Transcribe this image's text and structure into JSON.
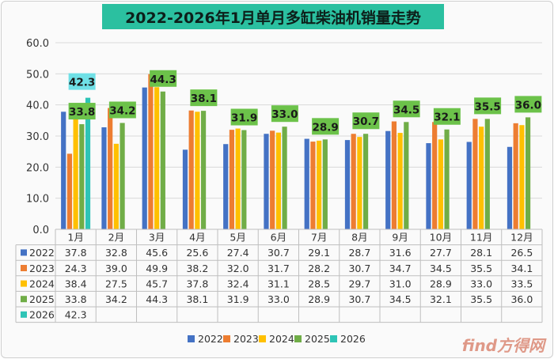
{
  "chart_data": {
    "type": "bar",
    "title": "2022-2026年1月单月多缸柴油机销量走势",
    "categories": [
      "1月",
      "2月",
      "3月",
      "4月",
      "5月",
      "6月",
      "7月",
      "8月",
      "9月",
      "10月",
      "11月",
      "12月"
    ],
    "ylim": [
      0,
      60
    ],
    "yticks": [
      "0.0",
      "10.0",
      "20.0",
      "30.0",
      "40.0",
      "50.0",
      "60.0"
    ],
    "grid": true,
    "legend_position": "bottom",
    "series": [
      {
        "name": "2022",
        "color": "#4472c4",
        "values": [
          37.8,
          32.8,
          45.6,
          25.6,
          27.4,
          30.7,
          29.1,
          28.7,
          31.6,
          27.7,
          28.1,
          26.5
        ]
      },
      {
        "name": "2023",
        "color": "#ed7d31",
        "values": [
          24.3,
          39.0,
          49.9,
          38.2,
          32.0,
          31.7,
          28.2,
          30.7,
          34.7,
          34.5,
          35.5,
          34.1
        ]
      },
      {
        "name": "2024",
        "color": "#ffc000",
        "values": [
          38.4,
          27.5,
          45.7,
          37.8,
          32.4,
          31.1,
          28.5,
          29.7,
          31.0,
          28.9,
          33.0,
          33.5
        ]
      },
      {
        "name": "2025",
        "color": "#70ad47",
        "values": [
          33.8,
          34.2,
          44.3,
          38.1,
          31.9,
          33.0,
          28.9,
          30.7,
          34.5,
          32.1,
          35.5,
          36.0
        ]
      },
      {
        "name": "2026",
        "color": "#2ec4b6",
        "values": [
          42.3,
          null,
          null,
          null,
          null,
          null,
          null,
          null,
          null,
          null,
          null,
          null
        ]
      }
    ],
    "table": [
      [
        "37.8",
        "32.8",
        "45.6",
        "25.6",
        "27.4",
        "30.7",
        "29.1",
        "28.7",
        "31.6",
        "27.7",
        "28.1",
        "26.5"
      ],
      [
        "24.3",
        "39.0",
        "49.9",
        "38.2",
        "32.0",
        "31.7",
        "28.2",
        "30.7",
        "34.7",
        "34.5",
        "35.5",
        "34.1"
      ],
      [
        "38.4",
        "27.5",
        "45.7",
        "37.8",
        "32.4",
        "31.1",
        "28.5",
        "29.7",
        "31.0",
        "28.9",
        "33.0",
        "33.5"
      ],
      [
        "33.8",
        "34.2",
        "44.3",
        "38.1",
        "31.9",
        "33.0",
        "28.9",
        "30.7",
        "34.5",
        "32.1",
        "35.5",
        "36.0"
      ],
      [
        "42.3",
        "",
        "",
        "",
        "",
        "",
        "",
        "",
        "",
        "",
        "",
        ""
      ]
    ],
    "data_labels_2025": [
      "33.8",
      "34.2",
      "44.3",
      "38.1",
      "31.9",
      "33.0",
      "28.9",
      "30.7",
      "34.5",
      "32.1",
      "35.5",
      "36.0"
    ],
    "data_label_2026": "42.3"
  },
  "watermark": "find方得网",
  "colors": {
    "label_box_2025": "#6cc24a",
    "label_box_2026": "#6fe0e6",
    "grid": "#d9d9d9"
  }
}
